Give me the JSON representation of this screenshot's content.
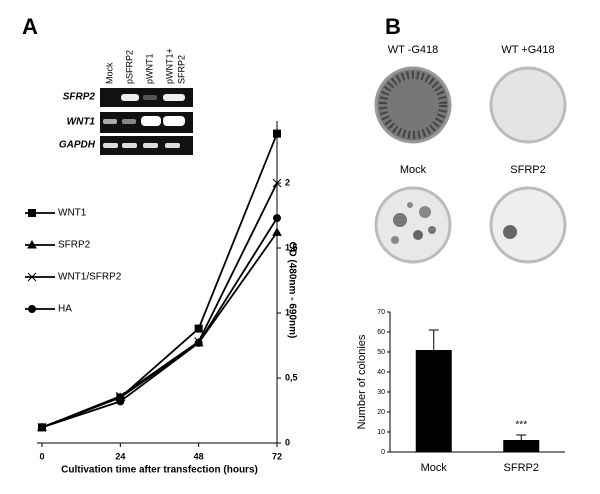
{
  "figure": {
    "panel_a": "A",
    "panel_b": "B",
    "gel": {
      "lanes": [
        "Mock",
        "pSFRP2",
        "pWNT1",
        "pWNT1+",
        "SFRP2"
      ],
      "rows": [
        "SFRP2",
        "WNT1",
        "GAPDH"
      ]
    },
    "plates": [
      "WT -G418",
      "WT +G418",
      "Mock",
      "SFRP2"
    ]
  },
  "chart_data": [
    {
      "type": "line",
      "x_label": "Cultivation time after transfection (hours)",
      "y_label": "OD (480nm - 690nm)",
      "x": [
        0,
        24,
        48,
        72
      ],
      "xlim": [
        0,
        72
      ],
      "xticks": [
        0,
        24,
        48,
        72
      ],
      "ylim": [
        0,
        2.4
      ],
      "yticks": [
        0,
        {
          "value": 0.5,
          "label": "0,5"
        },
        1,
        {
          "value": 1.5,
          "label": "1,5"
        },
        2
      ],
      "series": [
        {
          "name": "WNT1",
          "color": "#000000",
          "marker": "square",
          "values": [
            0.12,
            0.35,
            0.88,
            2.38
          ]
        },
        {
          "name": "SFRP2",
          "color": "#000000",
          "marker": "triangle",
          "values": [
            0.12,
            0.35,
            0.77,
            1.62
          ]
        },
        {
          "name": "WNT1/SFRP2",
          "color": "#000000",
          "marker": "x",
          "values": [
            0.12,
            0.36,
            0.78,
            2.0
          ]
        },
        {
          "name": "HA",
          "color": "#000000",
          "marker": "circle",
          "values": [
            0.12,
            0.32,
            0.77,
            1.73
          ]
        }
      ]
    },
    {
      "type": "bar",
      "y_label": "Number of colonies",
      "categories": [
        "Mock",
        "SFRP2"
      ],
      "values": [
        51,
        6
      ],
      "errors": [
        10,
        2.5
      ],
      "color": "#000000",
      "annotation": "***",
      "ylim": [
        0,
        70
      ],
      "yticks": [
        0,
        10,
        20,
        30,
        40,
        50,
        60,
        70
      ]
    }
  ]
}
